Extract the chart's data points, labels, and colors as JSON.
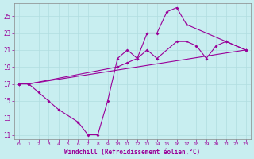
{
  "xlabel": "Windchill (Refroidissement éolien,°C)",
  "background_color": "#c8eef0",
  "line_color": "#990099",
  "grid_color": "#b0dde0",
  "ylim": [
    10.5,
    26.5
  ],
  "xlim": [
    -0.5,
    23.5
  ],
  "yticks": [
    11,
    13,
    15,
    17,
    19,
    21,
    23,
    25
  ],
  "xticks": [
    0,
    1,
    2,
    3,
    4,
    5,
    6,
    7,
    8,
    9,
    10,
    11,
    12,
    13,
    14,
    15,
    16,
    17,
    18,
    19,
    20,
    21,
    22,
    23
  ],
  "line1_x": [
    0,
    1,
    2,
    3,
    4,
    6,
    7,
    8,
    9,
    10,
    11,
    12,
    13,
    14,
    15,
    16,
    17,
    21,
    23
  ],
  "line1_y": [
    17,
    17,
    16,
    15,
    14,
    12.5,
    11,
    11,
    15,
    20,
    21,
    20,
    23,
    23,
    25.5,
    26,
    24,
    22,
    21
  ],
  "line2_x": [
    0,
    1,
    10,
    11,
    12,
    13,
    14,
    16,
    17,
    18,
    19,
    20,
    21,
    23
  ],
  "line2_y": [
    17,
    17,
    19,
    19.5,
    20,
    21,
    20,
    22,
    22,
    21.5,
    20,
    21.5,
    22,
    21
  ],
  "line3_x": [
    0,
    1,
    23
  ],
  "line3_y": [
    17,
    17,
    21
  ]
}
